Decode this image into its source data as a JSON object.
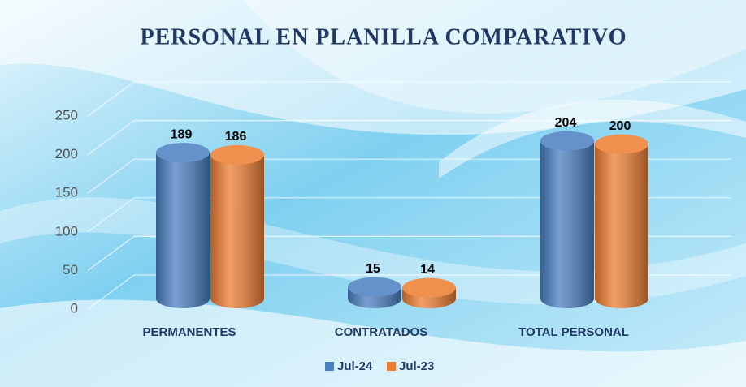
{
  "chart_data": {
    "type": "bar3d",
    "title": "PERSONAL EN PLANILLA COMPARATIVO",
    "categories": [
      "PERMANENTES",
      "CONTRATADOS",
      "TOTAL PERSONAL"
    ],
    "series": [
      {
        "name": "Jul-24",
        "color": "#4a7fc1",
        "values": [
          189,
          15,
          204
        ]
      },
      {
        "name": "Jul-23",
        "color": "#ed7d31",
        "values": [
          186,
          14,
          200
        ]
      }
    ],
    "ylim": [
      0,
      250
    ],
    "yticks": [
      0,
      50,
      100,
      150,
      200,
      250
    ],
    "grid": true,
    "legend": "bottom"
  }
}
